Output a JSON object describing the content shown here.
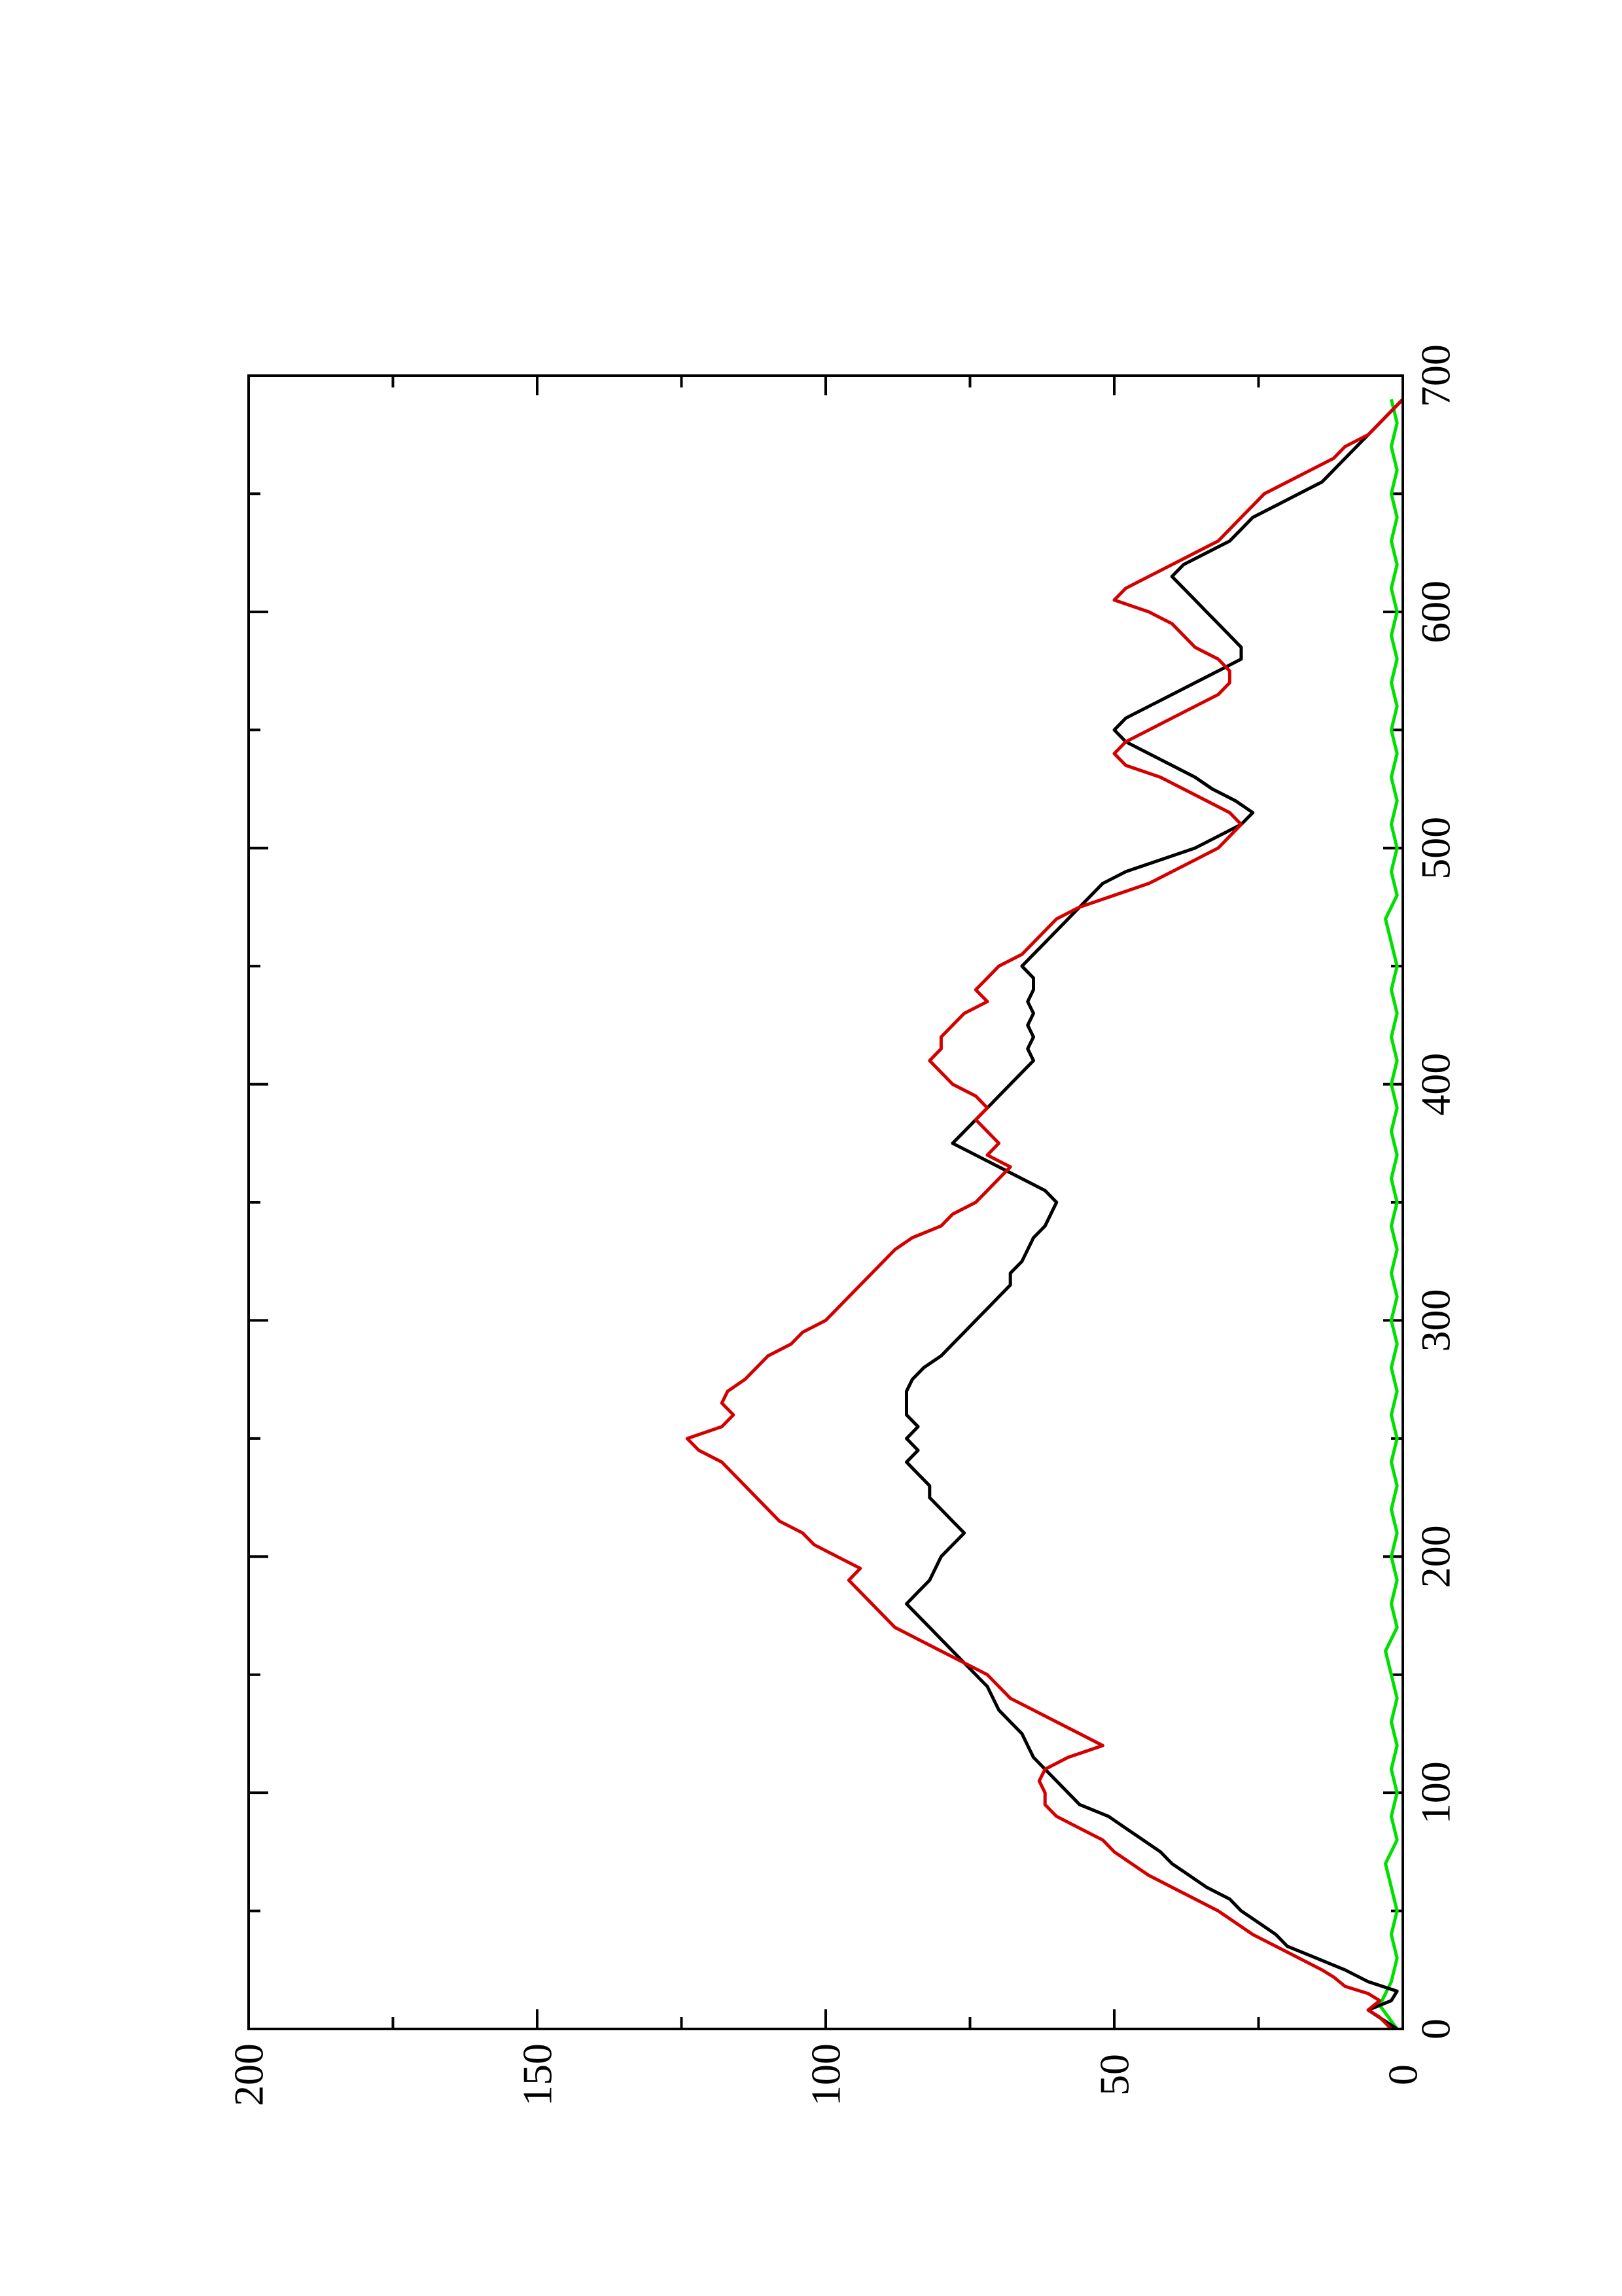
{
  "chart_data": {
    "type": "line",
    "orientation": "rotated-90-ccw",
    "title": "",
    "xlabel": "",
    "ylabel": "",
    "xlim": [
      0,
      700
    ],
    "ylim": [
      0,
      200
    ],
    "x_ticks": [
      0,
      100,
      200,
      300,
      400,
      500,
      600,
      700
    ],
    "y_ticks": [
      0,
      50,
      100,
      150,
      200
    ],
    "x_minor_ticks": [
      50,
      150,
      250,
      350,
      450,
      550,
      650
    ],
    "y_minor_ticks": [
      25,
      75,
      125,
      175
    ],
    "x_tick_labels": [
      "0",
      "100",
      "200",
      "300",
      "400",
      "500",
      "600",
      "700"
    ],
    "y_tick_labels": [
      "0",
      "50",
      "100",
      "150",
      "200"
    ],
    "series": [
      {
        "color": "#000000",
        "x": [
          0,
          8,
          12,
          16,
          20,
          25,
          30,
          35,
          40,
          45,
          50,
          55,
          60,
          65,
          70,
          75,
          80,
          85,
          90,
          95,
          100,
          105,
          110,
          115,
          120,
          125,
          130,
          135,
          140,
          145,
          150,
          155,
          160,
          165,
          170,
          175,
          180,
          185,
          190,
          195,
          200,
          205,
          210,
          215,
          220,
          225,
          230,
          235,
          240,
          245,
          250,
          255,
          260,
          265,
          270,
          275,
          280,
          285,
          290,
          295,
          300,
          305,
          310,
          315,
          320,
          325,
          330,
          335,
          340,
          345,
          350,
          355,
          360,
          365,
          370,
          375,
          380,
          385,
          390,
          395,
          400,
          405,
          410,
          415,
          420,
          425,
          430,
          435,
          440,
          445,
          450,
          455,
          460,
          465,
          470,
          475,
          480,
          485,
          490,
          495,
          500,
          505,
          510,
          515,
          520,
          525,
          530,
          535,
          540,
          545,
          550,
          555,
          560,
          565,
          570,
          575,
          580,
          585,
          590,
          595,
          600,
          605,
          610,
          615,
          620,
          625,
          630,
          635,
          640,
          645,
          650,
          655,
          660,
          665,
          670,
          675,
          680,
          685,
          690
        ],
        "y": [
          1,
          6,
          2,
          1,
          6,
          10,
          15,
          20,
          22,
          25,
          28,
          30,
          34,
          37,
          40,
          42,
          45,
          48,
          51,
          56,
          58,
          60,
          62,
          64,
          65,
          66,
          68,
          70,
          71,
          72,
          74,
          76,
          78,
          80,
          82,
          84,
          86,
          84,
          82,
          81,
          80,
          78,
          76,
          78,
          80,
          82,
          82,
          84,
          86,
          84,
          86,
          84,
          86,
          86,
          86,
          85,
          83,
          80,
          78,
          76,
          74,
          72,
          70,
          68,
          68,
          66,
          65,
          64,
          62,
          61,
          60,
          62,
          66,
          70,
          74,
          78,
          76,
          74,
          72,
          70,
          68,
          66,
          64,
          65,
          64,
          65,
          64,
          65,
          64,
          64,
          66,
          64,
          62,
          60,
          58,
          56,
          54,
          52,
          48,
          42,
          36,
          32,
          28,
          26,
          29,
          33,
          36,
          40,
          44,
          48,
          50,
          48,
          44,
          40,
          36,
          32,
          28,
          28,
          30,
          32,
          34,
          36,
          38,
          40,
          38,
          34,
          30,
          28,
          26,
          22,
          18,
          14,
          12,
          10,
          8,
          6,
          4,
          2,
          0
        ]
      },
      {
        "color": "#d40000",
        "x": [
          0,
          5,
          8,
          12,
          15,
          18,
          22,
          25,
          30,
          35,
          40,
          45,
          50,
          55,
          60,
          65,
          70,
          75,
          80,
          85,
          90,
          95,
          100,
          105,
          110,
          115,
          120,
          125,
          130,
          135,
          140,
          145,
          150,
          155,
          160,
          165,
          170,
          175,
          180,
          185,
          190,
          195,
          200,
          205,
          210,
          215,
          220,
          225,
          230,
          235,
          240,
          245,
          250,
          255,
          260,
          265,
          270,
          275,
          280,
          285,
          290,
          295,
          300,
          305,
          310,
          315,
          320,
          325,
          330,
          335,
          340,
          345,
          350,
          355,
          360,
          365,
          370,
          375,
          380,
          385,
          390,
          395,
          400,
          405,
          410,
          415,
          420,
          425,
          430,
          435,
          440,
          445,
          450,
          455,
          460,
          465,
          470,
          475,
          480,
          485,
          490,
          495,
          500,
          505,
          510,
          515,
          520,
          525,
          530,
          535,
          540,
          545,
          550,
          555,
          560,
          565,
          570,
          575,
          580,
          585,
          590,
          595,
          600,
          605,
          610,
          615,
          620,
          625,
          630,
          635,
          640,
          645,
          650,
          655,
          660,
          665,
          670,
          675,
          680,
          685,
          690
        ],
        "y": [
          2,
          4,
          6,
          4,
          6,
          10,
          12,
          14,
          18,
          22,
          26,
          29,
          32,
          36,
          40,
          44,
          47,
          50,
          52,
          56,
          60,
          62,
          62,
          63,
          62,
          58,
          52,
          56,
          60,
          64,
          68,
          70,
          72,
          76,
          80,
          84,
          88,
          90,
          92,
          94,
          96,
          94,
          98,
          102,
          104,
          108,
          110,
          112,
          114,
          116,
          118,
          122,
          124,
          118,
          116,
          118,
          117,
          114,
          112,
          110,
          106,
          104,
          100,
          98,
          96,
          94,
          92,
          90,
          88,
          85,
          80,
          78,
          74,
          72,
          70,
          68,
          72,
          70,
          72,
          74,
          72,
          74,
          78,
          80,
          82,
          80,
          80,
          78,
          76,
          72,
          74,
          72,
          70,
          66,
          64,
          62,
          60,
          56,
          50,
          44,
          40,
          36,
          32,
          30,
          28,
          30,
          34,
          38,
          42,
          48,
          50,
          48,
          44,
          40,
          36,
          32,
          30,
          30,
          32,
          36,
          38,
          40,
          44,
          50,
          48,
          44,
          40,
          36,
          32,
          30,
          28,
          26,
          24,
          20,
          16,
          12,
          10,
          6,
          4,
          2,
          0
        ]
      },
      {
        "color": "#00e000",
        "x": [
          0,
          10,
          20,
          30,
          40,
          50,
          60,
          70,
          80,
          90,
          100,
          110,
          120,
          130,
          140,
          150,
          160,
          170,
          180,
          190,
          200,
          210,
          220,
          230,
          240,
          250,
          260,
          270,
          280,
          290,
          300,
          310,
          320,
          330,
          340,
          350,
          360,
          370,
          380,
          390,
          400,
          410,
          420,
          430,
          440,
          450,
          460,
          470,
          480,
          490,
          500,
          510,
          520,
          530,
          540,
          550,
          560,
          570,
          580,
          590,
          600,
          610,
          620,
          630,
          640,
          650,
          660,
          670,
          680,
          690
        ],
        "y": [
          1,
          4,
          2,
          1,
          2,
          1,
          2,
          3,
          1,
          2,
          1,
          2,
          1,
          2,
          1,
          2,
          3,
          1,
          2,
          1,
          2,
          1,
          2,
          1,
          2,
          1,
          2,
          1,
          2,
          1,
          2,
          1,
          2,
          1,
          2,
          1,
          2,
          1,
          2,
          1,
          2,
          1,
          2,
          1,
          2,
          1,
          2,
          3,
          1,
          2,
          1,
          2,
          1,
          2,
          1,
          2,
          1,
          2,
          1,
          2,
          1,
          2,
          1,
          2,
          1,
          2,
          1,
          2,
          1,
          2
        ]
      }
    ]
  }
}
